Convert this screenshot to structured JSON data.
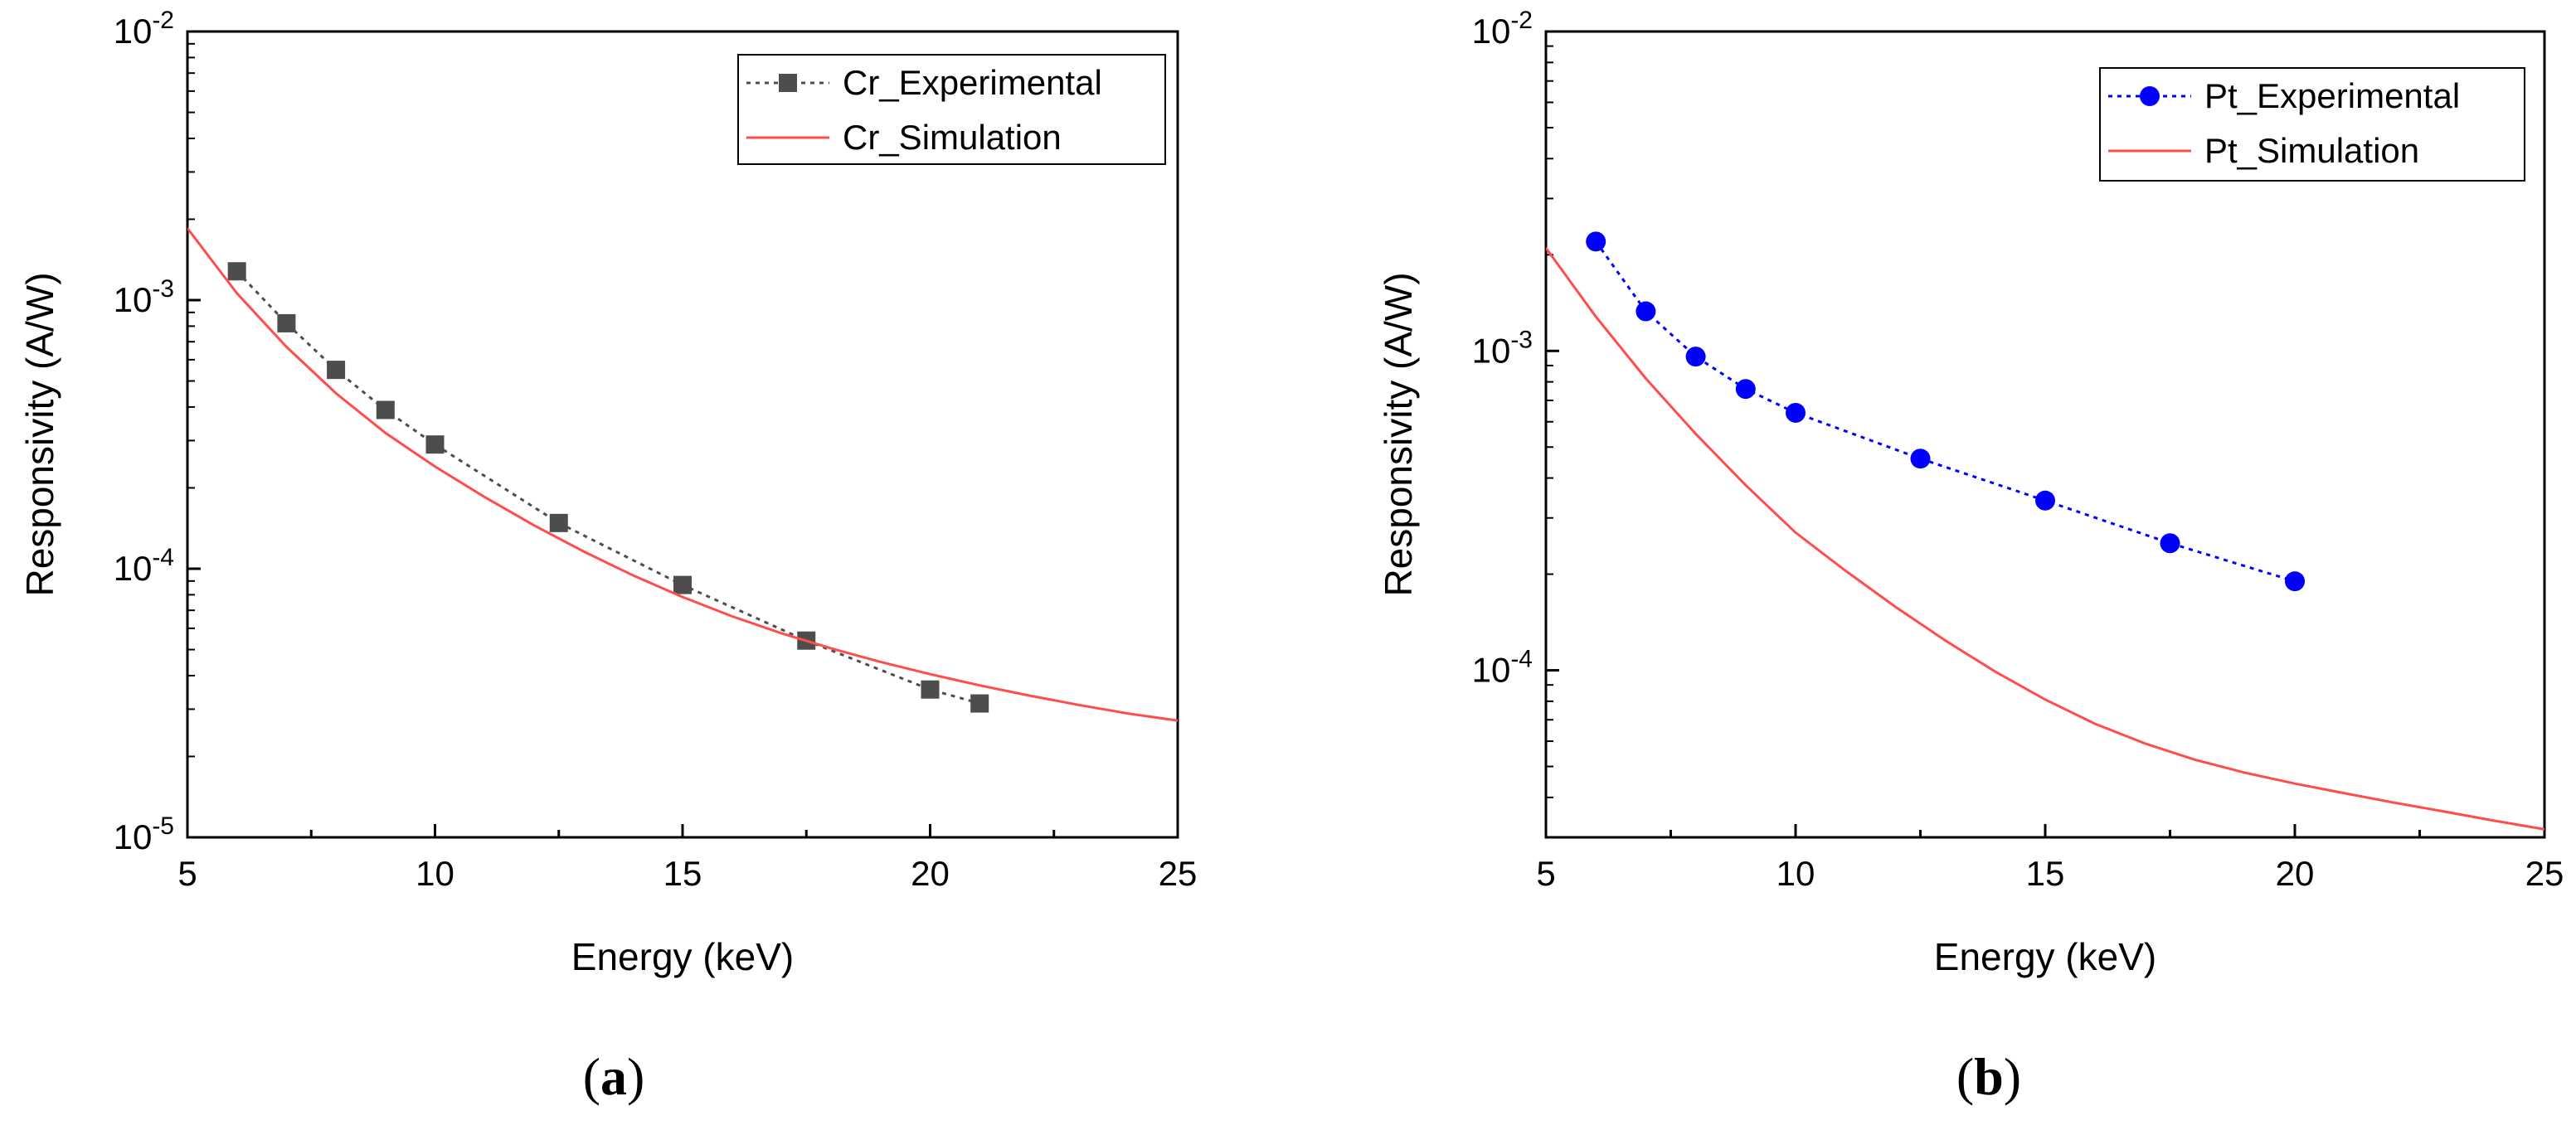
{
  "chart_data": [
    {
      "type": "line",
      "panel_label": "a",
      "xlabel": "Energy (keV)",
      "ylabel": "Responsivity (A/W)",
      "xlim": [
        5,
        25
      ],
      "ylim": [
        1e-05,
        0.01
      ],
      "yscale": "log",
      "xticks": [
        "5",
        "10",
        "15",
        "20",
        "25"
      ],
      "yticks": [
        {
          "base": "10",
          "exp": "-5",
          "value": 1e-05
        },
        {
          "base": "10",
          "exp": "-4",
          "value": 0.0001
        },
        {
          "base": "10",
          "exp": "-3",
          "value": 0.001
        },
        {
          "base": "10",
          "exp": "-2",
          "value": 0.01
        }
      ],
      "legend_position": "top-right",
      "series": [
        {
          "name": "Cr_Experimental",
          "style": "dotted-line-square-markers",
          "color": "#4d4d4d",
          "x": [
            6,
            7,
            8,
            9,
            10,
            12.5,
            15,
            17.5,
            20,
            21
          ],
          "y": [
            0.00128,
            0.00082,
            0.00055,
            0.00039,
            0.00029,
            0.000148,
            8.7e-05,
            5.4e-05,
            3.55e-05,
            3.15e-05
          ]
        },
        {
          "name": "Cr_Simulation",
          "style": "solid-line",
          "color": "#ff4d4d",
          "x": [
            5,
            6,
            7,
            8,
            9,
            10,
            11,
            12,
            13,
            14,
            15,
            16,
            17,
            18,
            19,
            20,
            21,
            22,
            23,
            24,
            25
          ],
          "y": [
            0.00185,
            0.00106,
            0.00067,
            0.00045,
            0.00032,
            0.00024,
            0.000185,
            0.000145,
            0.000116,
            9.45e-05,
            7.85e-05,
            6.65e-05,
            5.75e-05,
            5.05e-05,
            4.5e-05,
            4.05e-05,
            3.68e-05,
            3.37e-05,
            3.11e-05,
            2.89e-05,
            2.72e-05
          ]
        }
      ]
    },
    {
      "type": "line",
      "panel_label": "b",
      "xlabel": "Energy (keV)",
      "ylabel": "Responsivity (A/W)",
      "xlim": [
        5,
        25
      ],
      "ylim": [
        3e-05,
        0.01
      ],
      "yscale": "log",
      "xticks": [
        "5",
        "10",
        "15",
        "20",
        "25"
      ],
      "yticks": [
        {
          "base": "10",
          "exp": "-4",
          "value": 0.0001
        },
        {
          "base": "10",
          "exp": "-3",
          "value": 0.001
        },
        {
          "base": "10",
          "exp": "-2",
          "value": 0.01
        }
      ],
      "legend_position": "top-right",
      "series": [
        {
          "name": "Pt_Experimental",
          "style": "dotted-line-circle-markers",
          "color": "#0000ff",
          "x": [
            6,
            7,
            8,
            9,
            10,
            12.5,
            15,
            17.5,
            20
          ],
          "y": [
            0.0022,
            0.00133,
            0.00096,
            0.00076,
            0.00064,
            0.00046,
            0.00034,
            0.00025,
            0.00019
          ]
        },
        {
          "name": "Pt_Simulation",
          "style": "solid-line",
          "color": "#ff4d4d",
          "x": [
            5,
            6,
            7,
            8,
            9,
            10,
            11,
            12,
            13,
            14,
            15,
            16,
            17,
            18,
            19,
            20,
            21,
            22,
            23,
            24,
            25
          ],
          "y": [
            0.0021,
            0.00128,
            0.00082,
            0.00055,
            0.00038,
            0.00027,
            0.000205,
            0.000158,
            0.000124,
            9.9e-05,
            8.1e-05,
            6.8e-05,
            5.9e-05,
            5.25e-05,
            4.78e-05,
            4.42e-05,
            4.12e-05,
            3.85e-05,
            3.61e-05,
            3.38e-05,
            3.18e-05
          ]
        }
      ]
    }
  ]
}
